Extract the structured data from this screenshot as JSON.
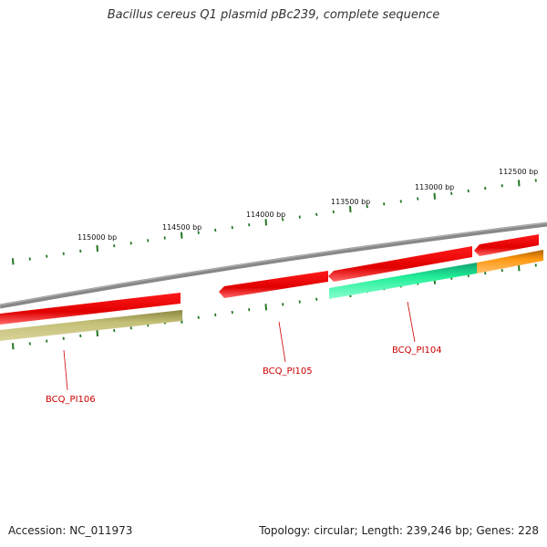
{
  "title": "Bacillus cereus Q1 plasmid pBc239, complete sequence",
  "footer": {
    "accession": "Accession: NC_011973",
    "summary": "Topology: circular; Length: 239,246 bp; Genes: 228"
  },
  "colors": {
    "backbone": "#808080",
    "cds": "#ee0000",
    "gene_olive": "#c0bb70",
    "gene_teal": "#22ee99",
    "gene_orange": "#ff9910",
    "tick": "#227722",
    "label": "#cc0000"
  },
  "scale_labels": [
    {
      "text": "115000 bp",
      "bp": 115000
    },
    {
      "text": "114500 bp",
      "bp": 114500
    },
    {
      "text": "114000 bp",
      "bp": 114000
    },
    {
      "text": "113500 bp",
      "bp": 113500
    },
    {
      "text": "113000 bp",
      "bp": 113000
    },
    {
      "text": "112500 bp",
      "bp": 112500
    }
  ],
  "genes": [
    {
      "label": "BCQ_PI106"
    },
    {
      "label": "BCQ_PI105"
    },
    {
      "label": "BCQ_PI104"
    }
  ]
}
